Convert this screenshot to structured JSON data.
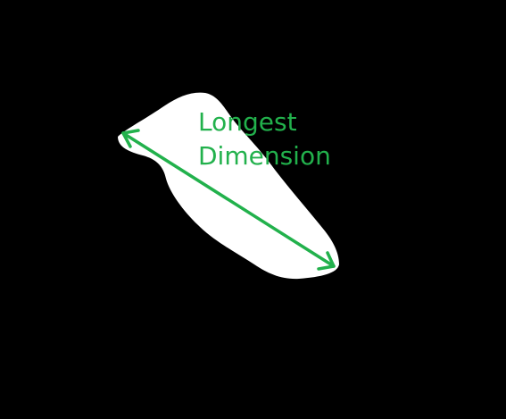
{
  "annotation": {
    "line1": "Longest",
    "line2": "Dimension"
  },
  "colors": {
    "background": "#000000",
    "shape": "#ffffff",
    "arrow": "#22b14c"
  },
  "icons": {
    "arrow": "double-headed-arrow-icon"
  }
}
